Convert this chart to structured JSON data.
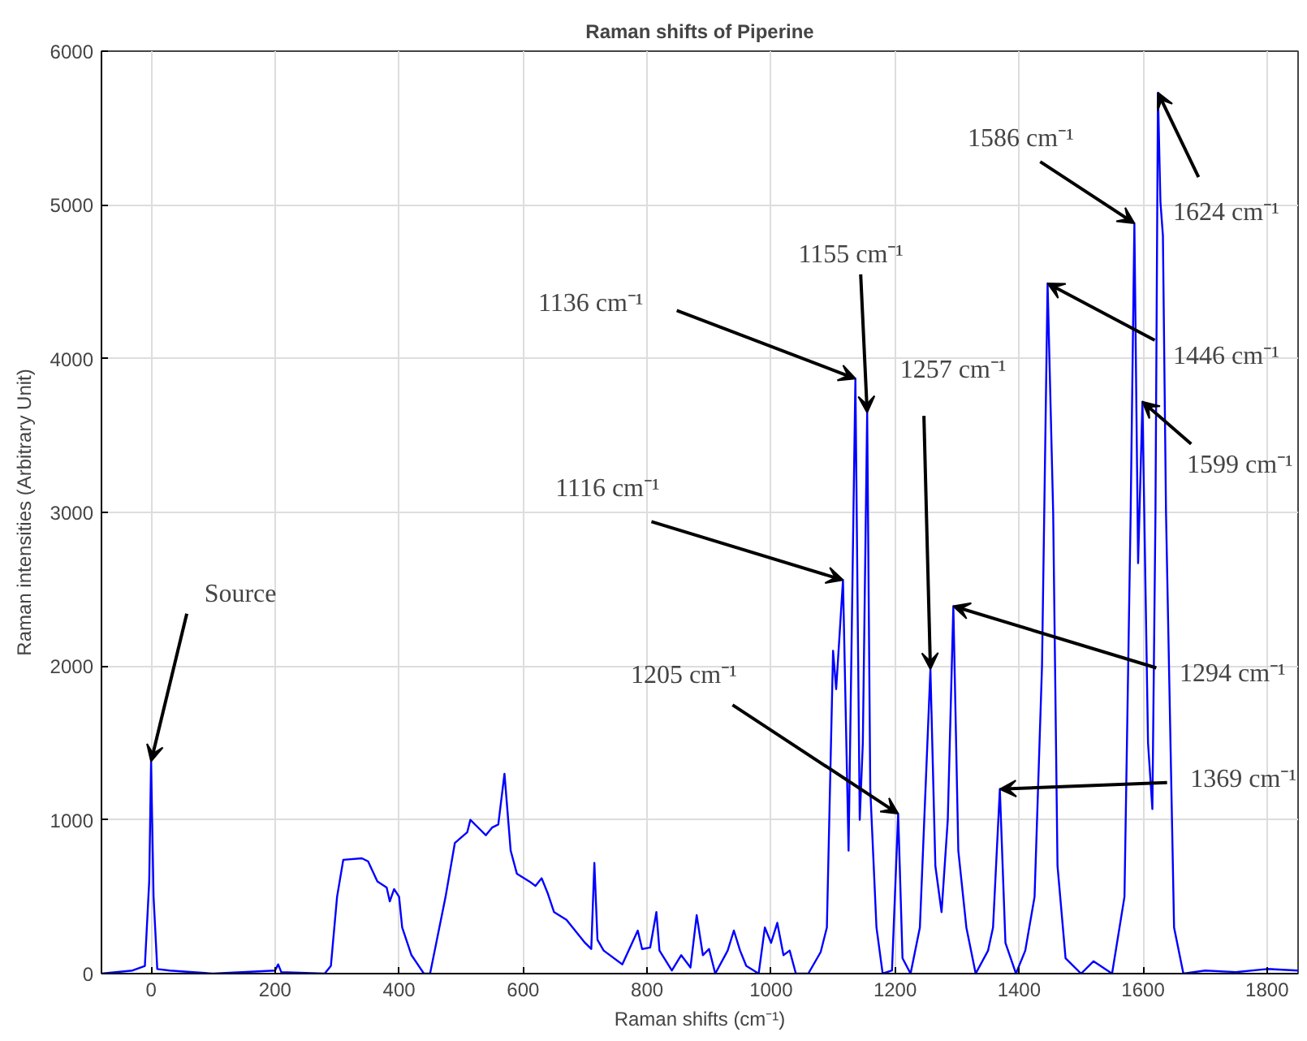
{
  "chart_data": {
    "type": "line",
    "title": "Raman shifts of Piperine",
    "xlabel": "Raman shifts (cm⁻¹)",
    "ylabel": "Raman intensities (Arbitrary Unit)",
    "xlim": [
      -80,
      1850
    ],
    "ylim": [
      0,
      6000
    ],
    "xticks": [
      0,
      200,
      400,
      600,
      800,
      1000,
      1200,
      1400,
      1600,
      1800
    ],
    "yticks": [
      0,
      1000,
      2000,
      3000,
      4000,
      5000,
      6000
    ],
    "grid": true,
    "marker": "none",
    "line_style": "solid",
    "series": [
      {
        "color": "#0000ff",
        "x": [
          -80,
          -30,
          -10,
          -3,
          0,
          4,
          10,
          30,
          100,
          200,
          205,
          210,
          280,
          290,
          300,
          310,
          340,
          350,
          365,
          380,
          385,
          392,
          400,
          405,
          420,
          440,
          450,
          460,
          475,
          490,
          510,
          515,
          525,
          540,
          550,
          560,
          570,
          580,
          590,
          610,
          620,
          630,
          640,
          650,
          670,
          700,
          710,
          715,
          720,
          730,
          760,
          785,
          792,
          805,
          815,
          820,
          840,
          855,
          870,
          880,
          890,
          900,
          910,
          930,
          940,
          950,
          960,
          980,
          990,
          1000,
          1010,
          1020,
          1030,
          1040,
          1060,
          1080,
          1090,
          1100,
          1105,
          1116,
          1125,
          1136,
          1143,
          1148,
          1155,
          1160,
          1170,
          1180,
          1195,
          1205,
          1212,
          1225,
          1240,
          1257,
          1265,
          1275,
          1285,
          1294,
          1302,
          1315,
          1330,
          1350,
          1358,
          1369,
          1378,
          1395,
          1410,
          1425,
          1437,
          1446,
          1455,
          1462,
          1475,
          1500,
          1520,
          1550,
          1570,
          1580,
          1586,
          1592,
          1599,
          1608,
          1615,
          1620,
          1624,
          1628,
          1632,
          1637,
          1650,
          1665,
          1700,
          1750,
          1800,
          1850
        ],
        "values": [
          0,
          20,
          50,
          600,
          1380,
          500,
          30,
          20,
          0,
          20,
          60,
          10,
          0,
          50,
          500,
          740,
          750,
          730,
          600,
          560,
          470,
          550,
          500,
          300,
          120,
          0,
          0,
          200,
          500,
          850,
          920,
          1000,
          960,
          900,
          950,
          970,
          1300,
          800,
          650,
          600,
          570,
          620,
          520,
          400,
          350,
          200,
          160,
          720,
          220,
          150,
          60,
          280,
          160,
          170,
          400,
          150,
          20,
          120,
          40,
          380,
          120,
          160,
          0,
          150,
          280,
          150,
          50,
          0,
          300,
          200,
          330,
          120,
          150,
          0,
          0,
          140,
          300,
          2100,
          1850,
          2560,
          800,
          3870,
          1000,
          1500,
          3650,
          1200,
          300,
          0,
          20,
          1040,
          100,
          0,
          300,
          1980,
          700,
          400,
          1000,
          2390,
          800,
          300,
          0,
          150,
          300,
          1200,
          200,
          0,
          150,
          500,
          2000,
          4490,
          3000,
          700,
          100,
          0,
          80,
          0,
          500,
          3000,
          4880,
          2670,
          3720,
          1500,
          1070,
          3000,
          5730,
          5020,
          4800,
          3000,
          300,
          0,
          20,
          10,
          30,
          20
        ]
      }
    ],
    "annotations": [
      {
        "text": "Source",
        "x": 0,
        "y": 1380
      },
      {
        "text": "1116 cm⁻¹",
        "x": 1116,
        "y": 2560
      },
      {
        "text": "1136 cm⁻¹",
        "x": 1136,
        "y": 3870
      },
      {
        "text": "1155 cm⁻¹",
        "x": 1155,
        "y": 3650
      },
      {
        "text": "1205 cm⁻¹",
        "x": 1205,
        "y": 1040
      },
      {
        "text": "1257 cm⁻¹",
        "x": 1257,
        "y": 1980
      },
      {
        "text": "1294 cm⁻¹",
        "x": 1294,
        "y": 2390
      },
      {
        "text": "1369 cm⁻¹",
        "x": 1369,
        "y": 1200
      },
      {
        "text": "1446 cm⁻¹",
        "x": 1446,
        "y": 4490
      },
      {
        "text": "1586 cm⁻¹",
        "x": 1586,
        "y": 4880
      },
      {
        "text": "1599 cm⁻¹",
        "x": 1599,
        "y": 3720
      },
      {
        "text": "1624 cm⁻¹",
        "x": 1624,
        "y": 5730
      }
    ]
  }
}
